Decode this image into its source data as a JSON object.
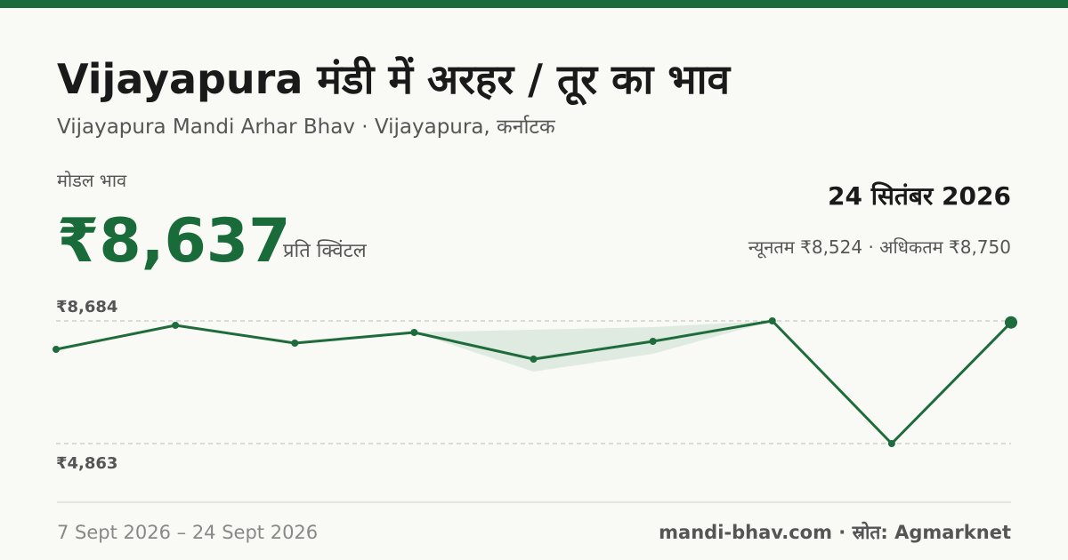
{
  "header": {
    "title": "Vijayapura मंडी में अरहर / तूर का भाव",
    "subtitle": "Vijayapura Mandi Arhar Bhav · Vijayapura, कर्नाटक"
  },
  "price": {
    "label": "मोडल भाव",
    "value": "₹8,637",
    "unit": "प्रति क्विंटल",
    "date": "24 सितंबर 2026",
    "range": "न्यूनतम ₹8,524 · अधिकतम ₹8,750"
  },
  "chart_data": {
    "type": "line",
    "series": [
      {
        "color": "#1e6b3c",
        "values": [
          7798,
          8546,
          7992,
          8324,
          7493,
          8047,
          8684,
          4863,
          8637
        ]
      }
    ],
    "band": {
      "color": "#dbe8de",
      "high": [
        null,
        null,
        null,
        8324,
        8407,
        8490,
        8684,
        null,
        null
      ],
      "low": [
        null,
        null,
        null,
        8324,
        7106,
        7659,
        8684,
        null,
        null
      ]
    },
    "ylim": [
      4863,
      8684
    ],
    "yticks": [
      {
        "value": 8684,
        "label": "₹8,684"
      },
      {
        "value": 4863,
        "label": "₹4,863"
      }
    ],
    "grid": true
  },
  "footer": {
    "dates": "7 Sept 2026 – 24 Sept 2026",
    "source": "mandi-bhav.com · स्रोत: Agmarknet"
  }
}
